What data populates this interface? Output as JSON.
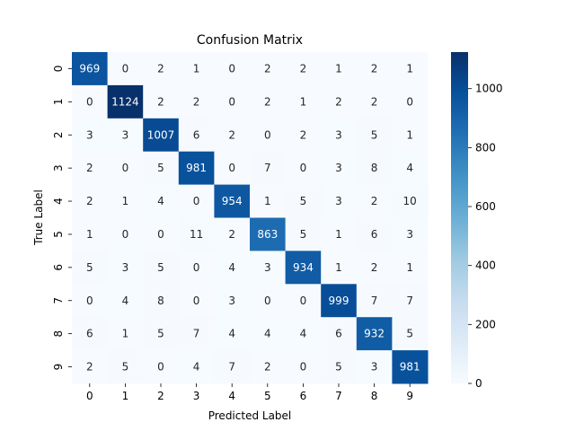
{
  "chart_data": {
    "type": "heatmap",
    "title": "Confusion Matrix",
    "xlabel": "Predicted Label",
    "ylabel": "True Label",
    "x_categories": [
      "0",
      "1",
      "2",
      "3",
      "4",
      "5",
      "6",
      "7",
      "8",
      "9"
    ],
    "y_categories": [
      "0",
      "1",
      "2",
      "3",
      "4",
      "5",
      "6",
      "7",
      "8",
      "9"
    ],
    "matrix": [
      [
        969,
        0,
        2,
        1,
        0,
        2,
        2,
        1,
        2,
        1
      ],
      [
        0,
        1124,
        2,
        2,
        0,
        2,
        1,
        2,
        2,
        0
      ],
      [
        3,
        3,
        1007,
        6,
        2,
        0,
        2,
        3,
        5,
        1
      ],
      [
        2,
        0,
        5,
        981,
        0,
        7,
        0,
        3,
        8,
        4
      ],
      [
        2,
        1,
        4,
        0,
        954,
        1,
        5,
        3,
        2,
        10
      ],
      [
        1,
        0,
        0,
        11,
        2,
        863,
        5,
        1,
        6,
        3
      ],
      [
        5,
        3,
        5,
        0,
        4,
        3,
        934,
        1,
        2,
        1
      ],
      [
        0,
        4,
        8,
        0,
        3,
        0,
        0,
        999,
        7,
        7
      ],
      [
        6,
        1,
        5,
        7,
        4,
        4,
        4,
        6,
        932,
        5
      ],
      [
        2,
        5,
        0,
        4,
        7,
        2,
        0,
        5,
        3,
        981
      ]
    ],
    "colormap": "Blues",
    "color_range": [
      0,
      1124
    ],
    "colorbar_ticks": [
      "0",
      "200",
      "400",
      "600",
      "800",
      "1000"
    ],
    "colorbar_tick_values": [
      0,
      200,
      400,
      600,
      800,
      1000
    ],
    "grid": false,
    "legend": "colorbar-right"
  }
}
